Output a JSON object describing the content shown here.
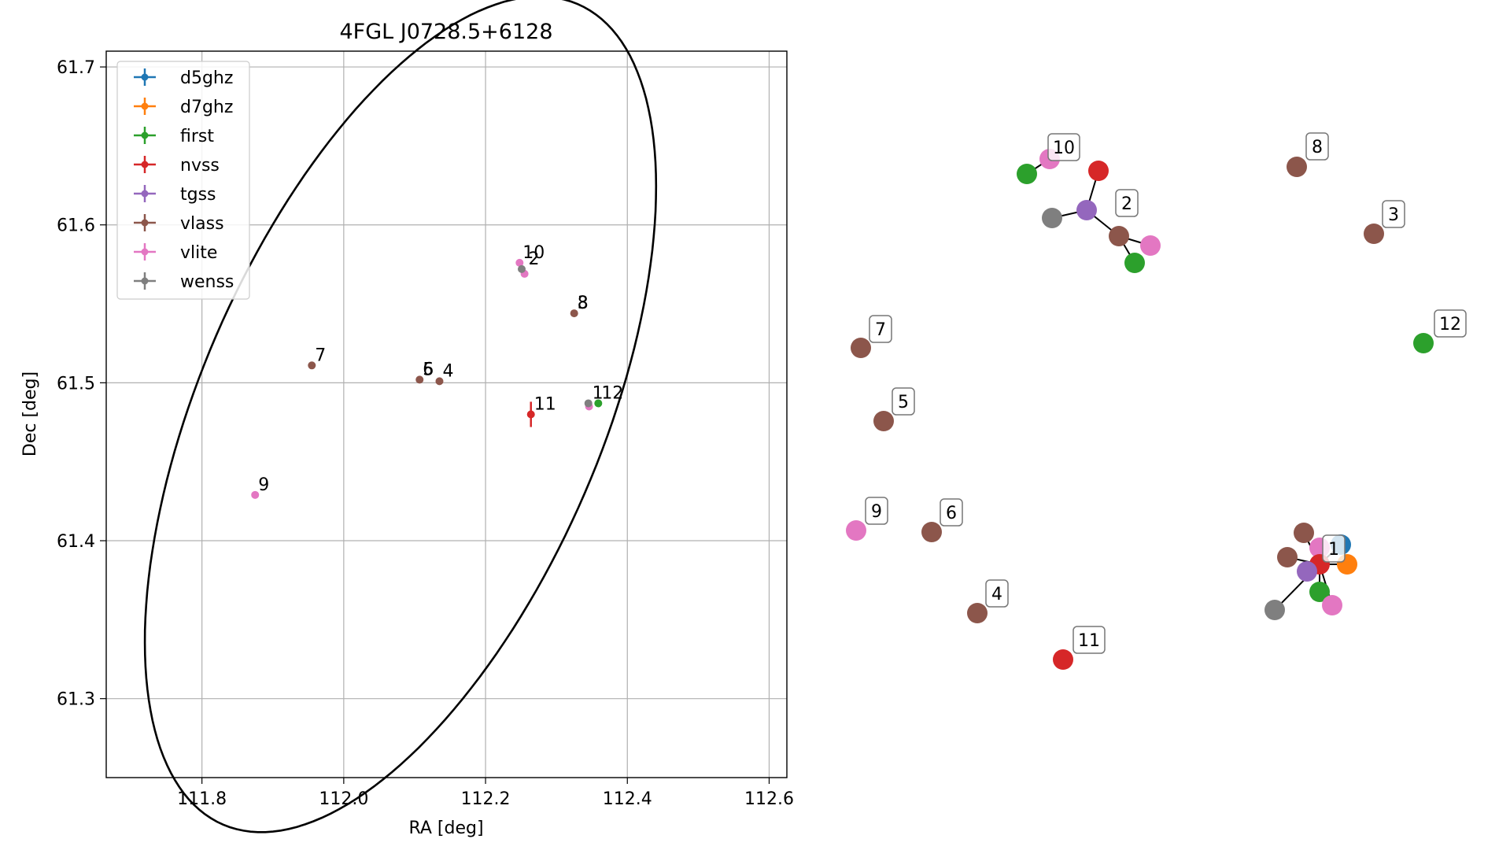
{
  "colors": {
    "d5ghz": "#1f77b4",
    "d7ghz": "#ff7f0e",
    "first": "#2ca02c",
    "nvss": "#d62728",
    "tgss": "#9467bd",
    "vlass": "#8c564b",
    "vlite": "#e377c2",
    "wenss": "#7f7f7f"
  },
  "chart_data": [
    {
      "type": "scatter",
      "title": "4FGL J0728.5+6128",
      "xlabel": "RA [deg]",
      "ylabel": "Dec [deg]",
      "xlim": [
        111.665,
        112.625
      ],
      "ylim": [
        61.25,
        61.71
      ],
      "x_ticks": [
        111.8,
        112.0,
        112.2,
        112.4,
        112.6
      ],
      "x_tick_labels": [
        "111.8",
        "112.0",
        "112.2",
        "112.4",
        "112.6"
      ],
      "y_ticks": [
        61.3,
        61.4,
        61.5,
        61.6,
        61.7
      ],
      "y_tick_labels": [
        "61.3",
        "61.4",
        "61.5",
        "61.6",
        "61.7"
      ],
      "grid": true,
      "legend_position": "top-left",
      "legend": [
        "d5ghz",
        "d7ghz",
        "first",
        "nvss",
        "tgss",
        "vlass",
        "vlite",
        "wenss"
      ],
      "series": [
        {
          "name": "vlass",
          "points": [
            {
              "x": 112.325,
              "y": 61.544
            },
            {
              "x": 111.955,
              "y": 61.511
            },
            {
              "x": 112.107,
              "y": 61.502
            },
            {
              "x": 112.135,
              "y": 61.501
            }
          ]
        },
        {
          "name": "vlite",
          "points": [
            {
              "x": 112.248,
              "y": 61.576
            },
            {
              "x": 112.255,
              "y": 61.569
            },
            {
              "x": 111.875,
              "y": 61.429
            },
            {
              "x": 112.346,
              "y": 61.485
            }
          ]
        },
        {
          "name": "wenss",
          "points": [
            {
              "x": 112.251,
              "y": 61.572
            },
            {
              "x": 112.345,
              "y": 61.487
            }
          ]
        },
        {
          "name": "first",
          "points": [
            {
              "x": 112.359,
              "y": 61.487
            }
          ]
        },
        {
          "name": "nvss",
          "points": [
            {
              "x": 112.264,
              "y": 61.48,
              "yerr": 0.008
            }
          ]
        }
      ],
      "labels": [
        {
          "text": "10",
          "x": 112.248,
          "y": 61.576
        },
        {
          "text": "2",
          "x": 112.256,
          "y": 61.572
        },
        {
          "text": "8",
          "x": 112.325,
          "y": 61.544
        },
        {
          "text": "3",
          "x": 112.325,
          "y": 61.544
        },
        {
          "text": "7",
          "x": 111.955,
          "y": 61.511
        },
        {
          "text": "6",
          "x": 112.107,
          "y": 61.502
        },
        {
          "text": "5",
          "x": 112.107,
          "y": 61.502
        },
        {
          "text": "4",
          "x": 112.135,
          "y": 61.501
        },
        {
          "text": "11",
          "x": 112.264,
          "y": 61.48
        },
        {
          "text": "1",
          "x": 112.346,
          "y": 61.487
        },
        {
          "text": "12",
          "x": 112.359,
          "y": 61.487
        },
        {
          "text": "9",
          "x": 111.875,
          "y": 61.429
        }
      ],
      "ellipse": {
        "center": {
          "x": 112.08,
          "y": 61.48
        },
        "semi_major": 0.4,
        "semi_minor": 0.2,
        "angle_deg": 30
      }
    },
    {
      "type": "graph",
      "nodes": [
        {
          "id": "n10",
          "label": "10",
          "survey": "vlite"
        },
        {
          "id": "n10f",
          "survey": "first"
        },
        {
          "id": "n2r",
          "survey": "nvss"
        },
        {
          "id": "n2w",
          "survey": "wenss"
        },
        {
          "id": "n2t",
          "survey": "tgss"
        },
        {
          "id": "n2",
          "label": "2",
          "survey": "vlass"
        },
        {
          "id": "n2p",
          "survey": "vlite"
        },
        {
          "id": "n2f",
          "survey": "first"
        },
        {
          "id": "n8",
          "label": "8",
          "survey": "vlass"
        },
        {
          "id": "n3",
          "label": "3",
          "survey": "vlass"
        },
        {
          "id": "n12",
          "label": "12",
          "survey": "first"
        },
        {
          "id": "n7",
          "label": "7",
          "survey": "vlass"
        },
        {
          "id": "n5",
          "label": "5",
          "survey": "vlass"
        },
        {
          "id": "n9",
          "label": "9",
          "survey": "vlite"
        },
        {
          "id": "n6",
          "label": "6",
          "survey": "vlass"
        },
        {
          "id": "n4",
          "label": "4",
          "survey": "vlass"
        },
        {
          "id": "n11",
          "label": "11",
          "survey": "nvss"
        },
        {
          "id": "c1v",
          "survey": "vlass"
        },
        {
          "id": "c1v2",
          "survey": "vlass"
        },
        {
          "id": "c1b",
          "survey": "d5ghz"
        },
        {
          "id": "c1p",
          "survey": "vlite"
        },
        {
          "id": "c1",
          "label": "1",
          "survey": "nvss"
        },
        {
          "id": "c1o",
          "survey": "d7ghz"
        },
        {
          "id": "c1t",
          "survey": "tgss"
        },
        {
          "id": "c1f",
          "survey": "first"
        },
        {
          "id": "c1w",
          "survey": "wenss"
        },
        {
          "id": "c1p2",
          "survey": "vlite"
        }
      ],
      "edges": [
        [
          "n10f",
          "n10"
        ],
        [
          "n2r",
          "n2t"
        ],
        [
          "n2w",
          "n2t"
        ],
        [
          "n2t",
          "n2"
        ],
        [
          "n2",
          "n2p"
        ],
        [
          "n2",
          "n2f"
        ],
        [
          "c1",
          "c1v"
        ],
        [
          "c1",
          "c1v2"
        ],
        [
          "c1",
          "c1b"
        ],
        [
          "c1",
          "c1p"
        ],
        [
          "c1",
          "c1o"
        ],
        [
          "c1",
          "c1t"
        ],
        [
          "c1",
          "c1f"
        ],
        [
          "c1",
          "c1w"
        ],
        [
          "c1",
          "c1p2"
        ]
      ]
    }
  ]
}
